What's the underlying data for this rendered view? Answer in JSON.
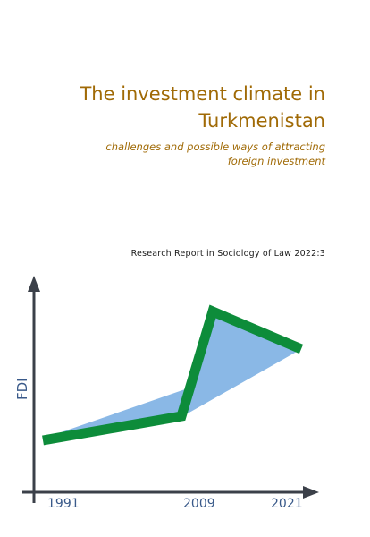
{
  "cover": {
    "title_line1": "The investment climate in",
    "title_line2": "Turkmenistan",
    "subtitle_line1": "challenges and possible ways of attracting",
    "subtitle_line2": "foreign investment",
    "series": "Research Report in Sociology of Law 2022:3"
  },
  "colors": {
    "accent_text": "#a06a06",
    "axis": "#3b4049",
    "line": "#0d8c3a",
    "fill": "#8ab8e6",
    "axis_label": "#3a5a8a"
  },
  "illustration": {
    "y_label": "FDI",
    "x_labels": [
      "1991",
      "2009",
      "2021"
    ]
  }
}
